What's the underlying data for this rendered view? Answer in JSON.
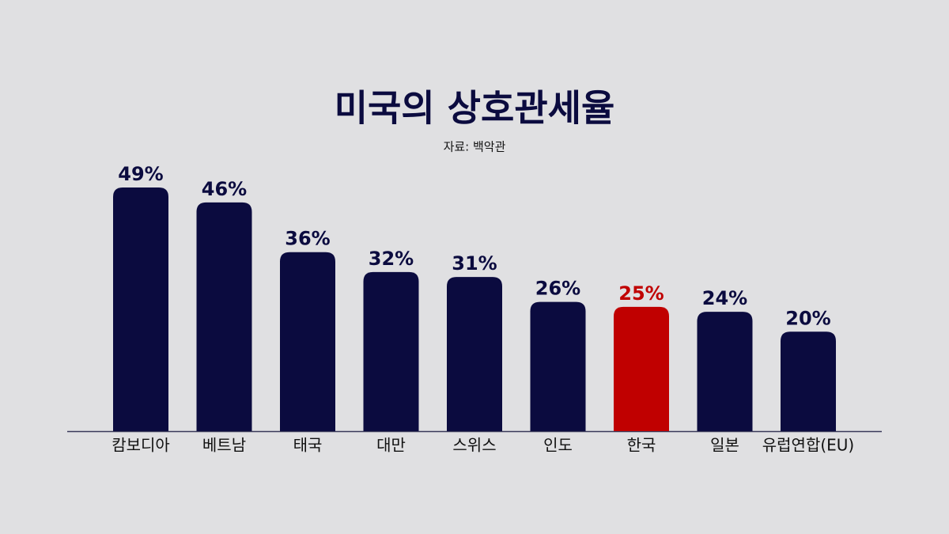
{
  "chart_data": {
    "type": "bar",
    "title": "미국의 상호관세율",
    "subtitle": "자료: 백악관",
    "categories": [
      "캄보디아",
      "베트남",
      "태국",
      "대만",
      "스위스",
      "인도",
      "한국",
      "일본",
      "유럽연합(EU)"
    ],
    "values": [
      49,
      46,
      36,
      32,
      31,
      26,
      25,
      24,
      20
    ],
    "value_labels": [
      "49%",
      "46%",
      "36%",
      "32%",
      "31%",
      "26%",
      "25%",
      "24%",
      "20%"
    ],
    "colors": [
      "#0b0b3f",
      "#0b0b3f",
      "#0b0b3f",
      "#0b0b3f",
      "#0b0b3f",
      "#0b0b3f",
      "#c00000",
      "#0b0b3f",
      "#0b0b3f"
    ]
  }
}
